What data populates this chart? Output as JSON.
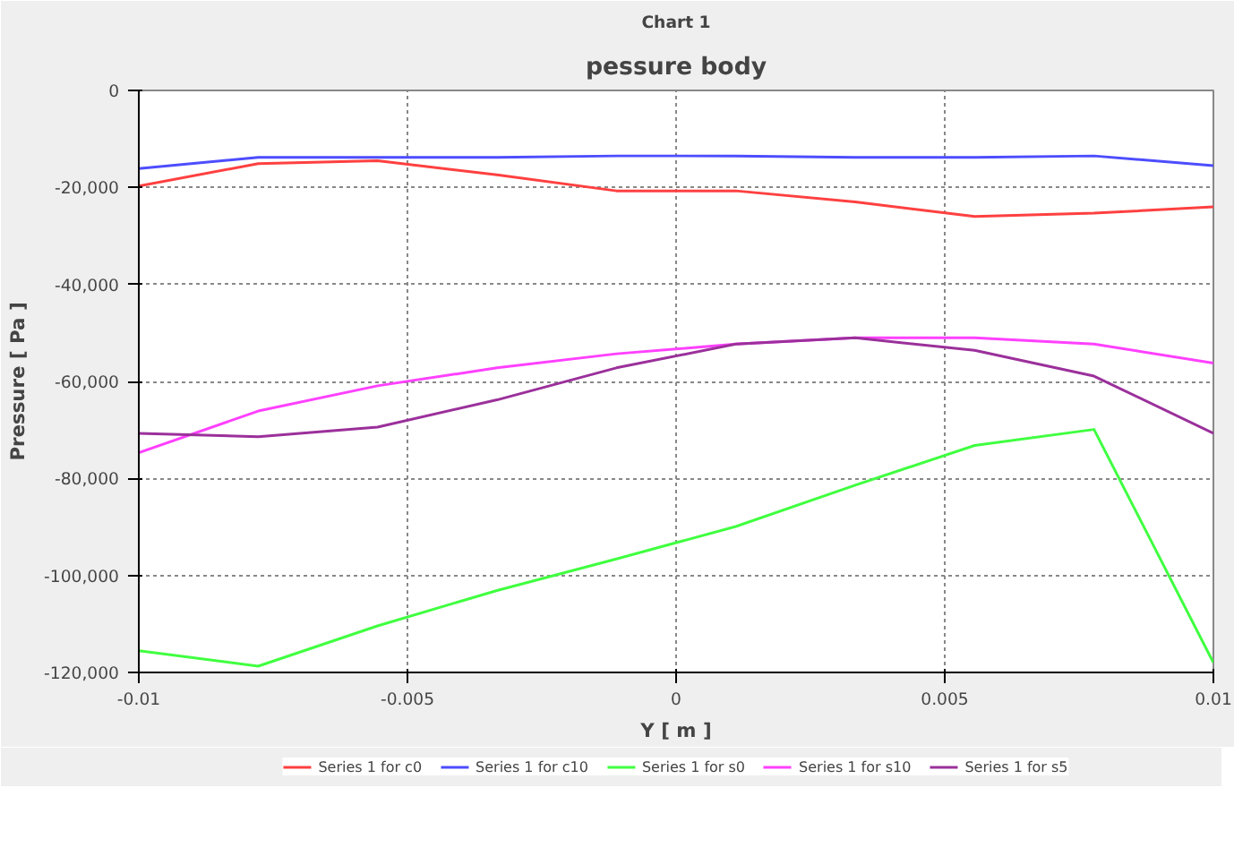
{
  "chart_data": {
    "type": "line",
    "title": "pessure body",
    "subtitle": "Chart 1",
    "xlabel": "Y [ m ]",
    "ylabel": "Pressure [ Pa ]",
    "x": [
      -0.01,
      -0.007778,
      -0.005556,
      -0.003333,
      -0.001111,
      0.001111,
      0.003333,
      0.005556,
      0.007778,
      0.01
    ],
    "series": [
      {
        "name": "Series 1 for c0",
        "color": "#ff4040",
        "values": [
          -19700,
          -15100,
          -14500,
          -17400,
          -20700,
          -20700,
          -23000,
          -26000,
          -25300,
          -24000
        ]
      },
      {
        "name": "Series 1 for c10",
        "color": "#4d4dff",
        "values": [
          -16100,
          -13800,
          -13800,
          -13800,
          -13500,
          -13500,
          -13800,
          -13800,
          -13500,
          -15500
        ]
      },
      {
        "name": "Series 1 for s0",
        "color": "#40ff40",
        "values": [
          -115500,
          -118700,
          -110400,
          -103100,
          -96600,
          -89900,
          -81400,
          -73200,
          -69900,
          -118000
        ]
      },
      {
        "name": "Series 1 for s10",
        "color": "#ff40ff",
        "values": [
          -74700,
          -66100,
          -60900,
          -57200,
          -54300,
          -52300,
          -51000,
          -51000,
          -52300,
          -56200
        ]
      },
      {
        "name": "Series 1 for s5",
        "color": "#9b309b",
        "values": [
          -70700,
          -71400,
          -69400,
          -63800,
          -57200,
          -52300,
          -51000,
          -53600,
          -58900,
          -70700
        ]
      }
    ],
    "xlim": [
      -0.01,
      0.01
    ],
    "xticks": [
      -0.01,
      -0.005,
      0,
      0.005,
      0.01
    ],
    "ylim": [
      -120000,
      0
    ],
    "yticks": [
      {
        "value": -120000,
        "label": "-120,000"
      },
      {
        "value": -100000,
        "label": "-100,000"
      },
      {
        "value": -80000,
        "label": "-80,000"
      },
      {
        "value": -60000,
        "label": "-60,000"
      },
      {
        "value": -40000,
        "label": "-40,000"
      },
      {
        "value": -20000,
        "label": "-20,000"
      },
      0
    ],
    "grid": true,
    "legend": "bottom",
    "marker": "none",
    "line_style": "solid"
  }
}
